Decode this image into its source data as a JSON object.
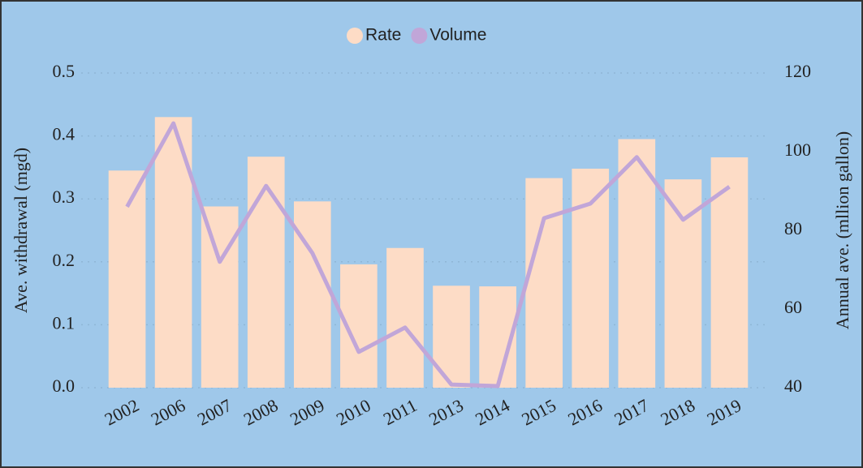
{
  "chart_data": {
    "type": "bar-line",
    "categories": [
      "2002",
      "2006",
      "2007",
      "2008",
      "2009",
      "2010",
      "2011",
      "2013",
      "2014",
      "2015",
      "2016",
      "2017",
      "2018",
      "2019"
    ],
    "series": [
      {
        "name": "Rate",
        "color": "#fddcc6",
        "type": "bar",
        "values": [
          0.345,
          0.43,
          0.288,
          0.367,
          0.296,
          0.196,
          0.222,
          0.162,
          0.161,
          0.333,
          0.348,
          0.395,
          0.331,
          0.366
        ]
      },
      {
        "name": "Volume",
        "color": "#c1a6d8",
        "type": "line",
        "axis": "y2",
        "values": [
          86.0,
          107.2,
          72.0,
          91.3,
          74.2,
          49.1,
          55.3,
          40.8,
          40.4,
          83.1,
          86.8,
          98.6,
          82.7,
          91.1
        ]
      }
    ],
    "y_label": "Ave. withdrawal (mgd)",
    "y2_label": "Annual ave. (mllion gallon)",
    "ylim": [
      0,
      0.5
    ],
    "yticks": [
      {
        "value": 0,
        "label": "0.0"
      },
      0.1,
      0.2,
      0.3,
      0.4,
      0.5
    ],
    "y2lim": [
      40,
      120
    ],
    "y2ticks": [
      40,
      60,
      80,
      100,
      120
    ],
    "grid": true,
    "legend": "top"
  }
}
